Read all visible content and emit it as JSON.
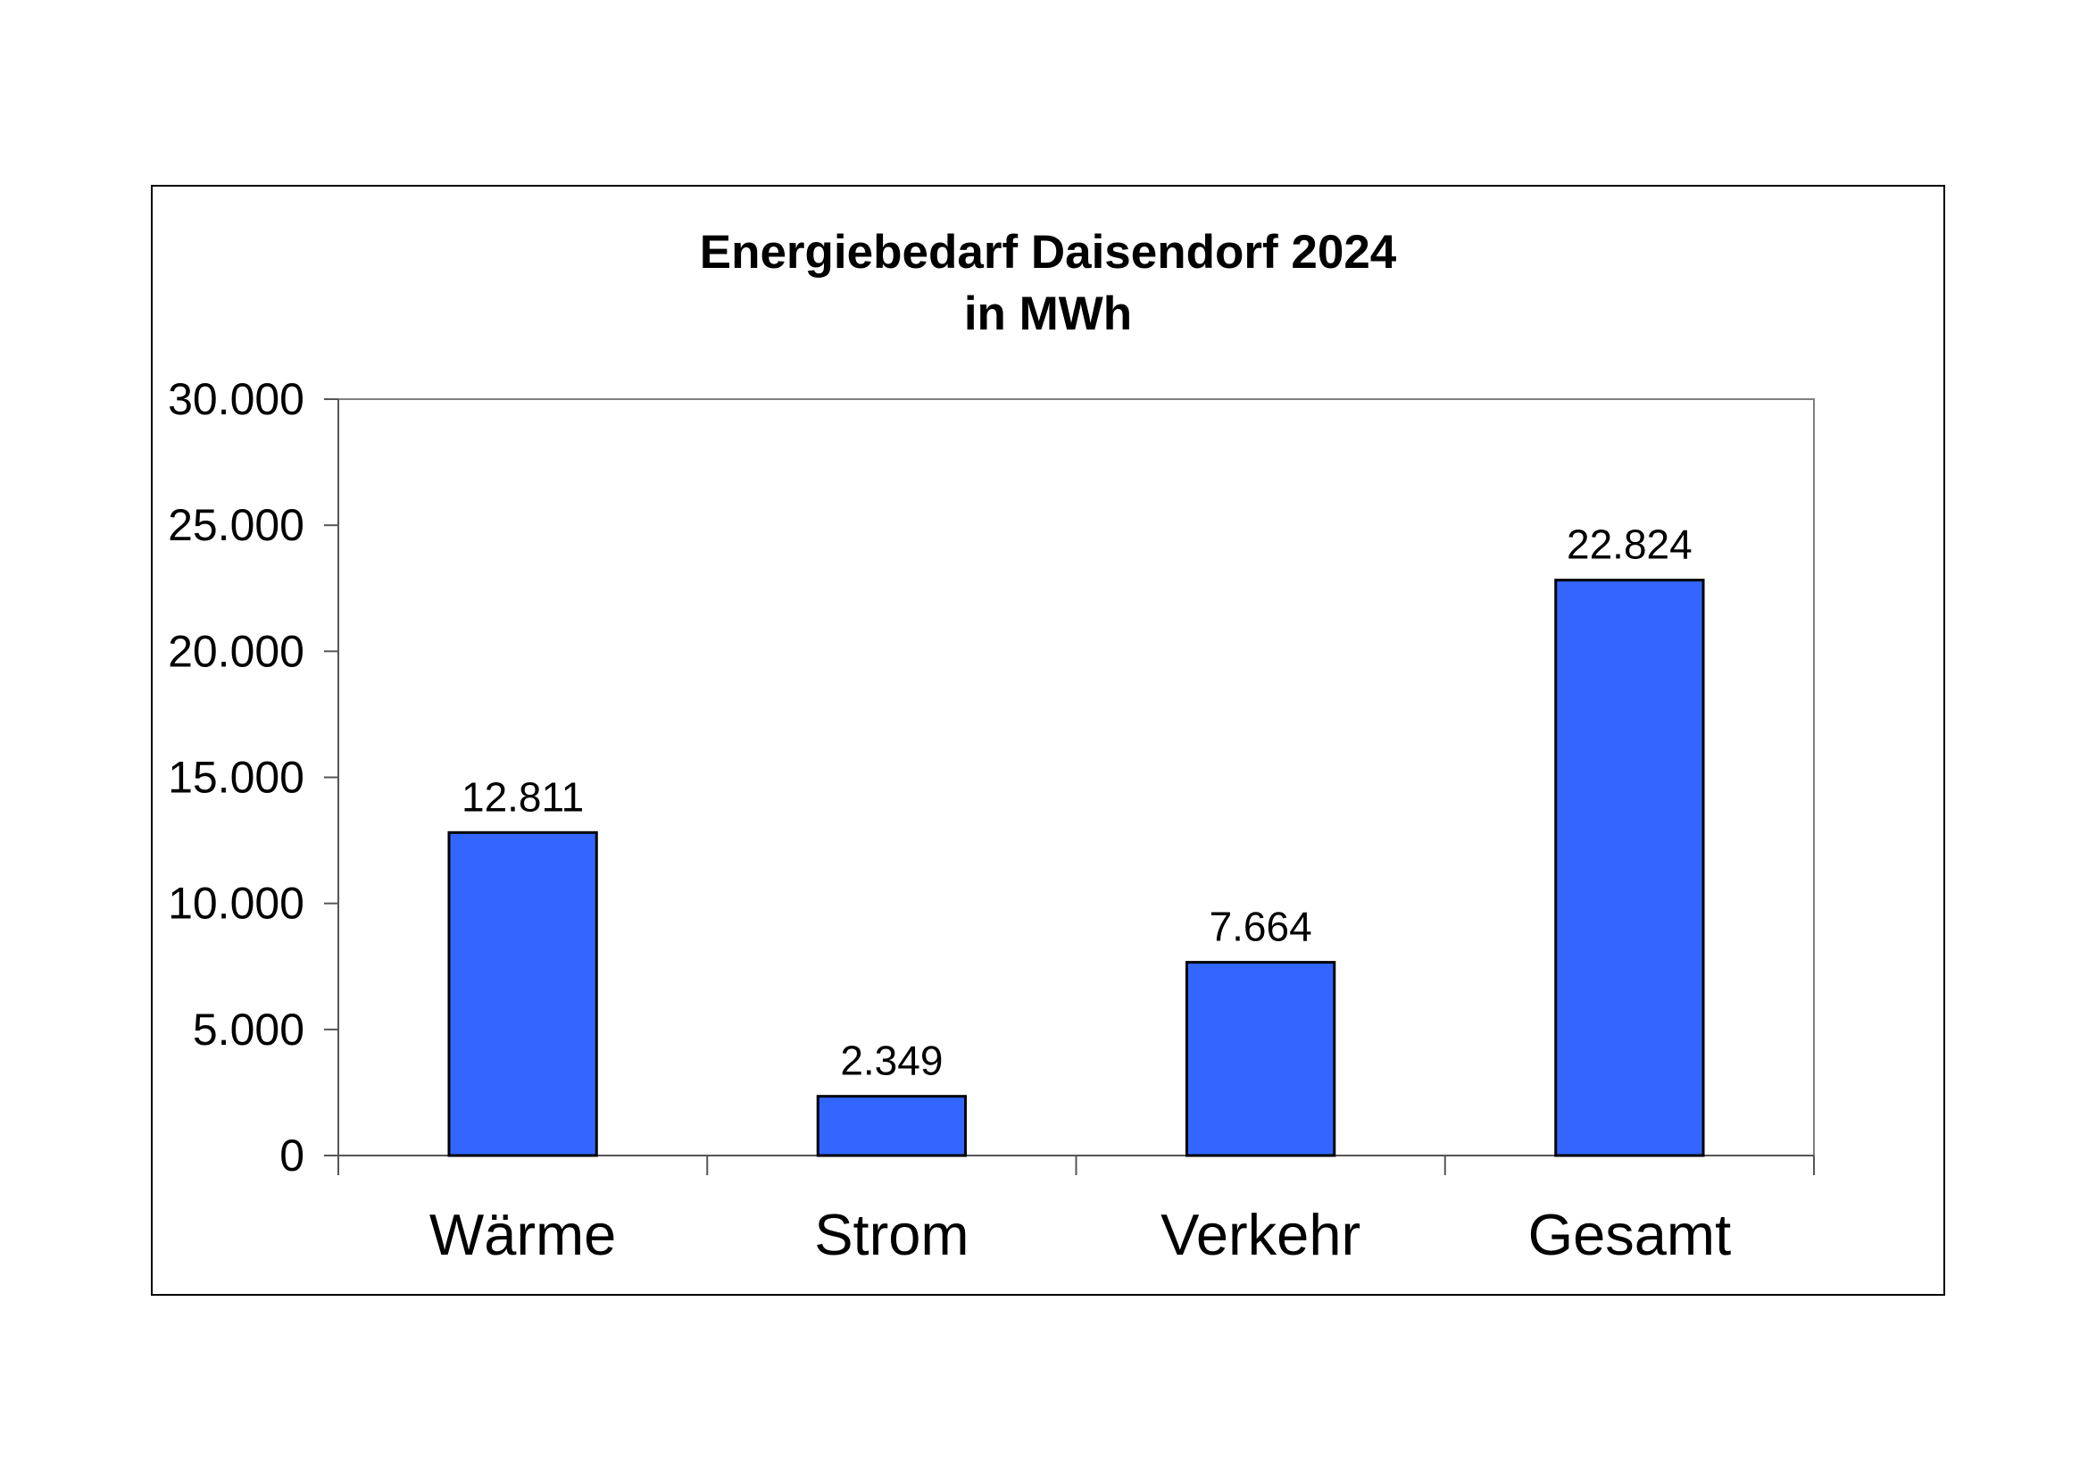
{
  "chart_data": {
    "type": "bar",
    "title": "Energiebedarf Daisendorf 2024",
    "subtitle": "in MWh",
    "categories": [
      "Wärme",
      "Strom",
      "Verkehr",
      "Gesamt"
    ],
    "values": [
      12811,
      2349,
      7664,
      22824
    ],
    "value_labels": [
      "12.811",
      "2.349",
      "7.664",
      "22.824"
    ],
    "xlabel": "",
    "ylabel": "",
    "ylim": [
      0,
      30000
    ],
    "yticks": [
      0,
      5000,
      10000,
      15000,
      20000,
      25000,
      30000
    ],
    "ytick_labels": [
      "0",
      "5.000",
      "10.000",
      "15.000",
      "20.000",
      "25.000",
      "30.000"
    ],
    "grid": false,
    "legend": "none",
    "bar_color": "#3366ff"
  }
}
